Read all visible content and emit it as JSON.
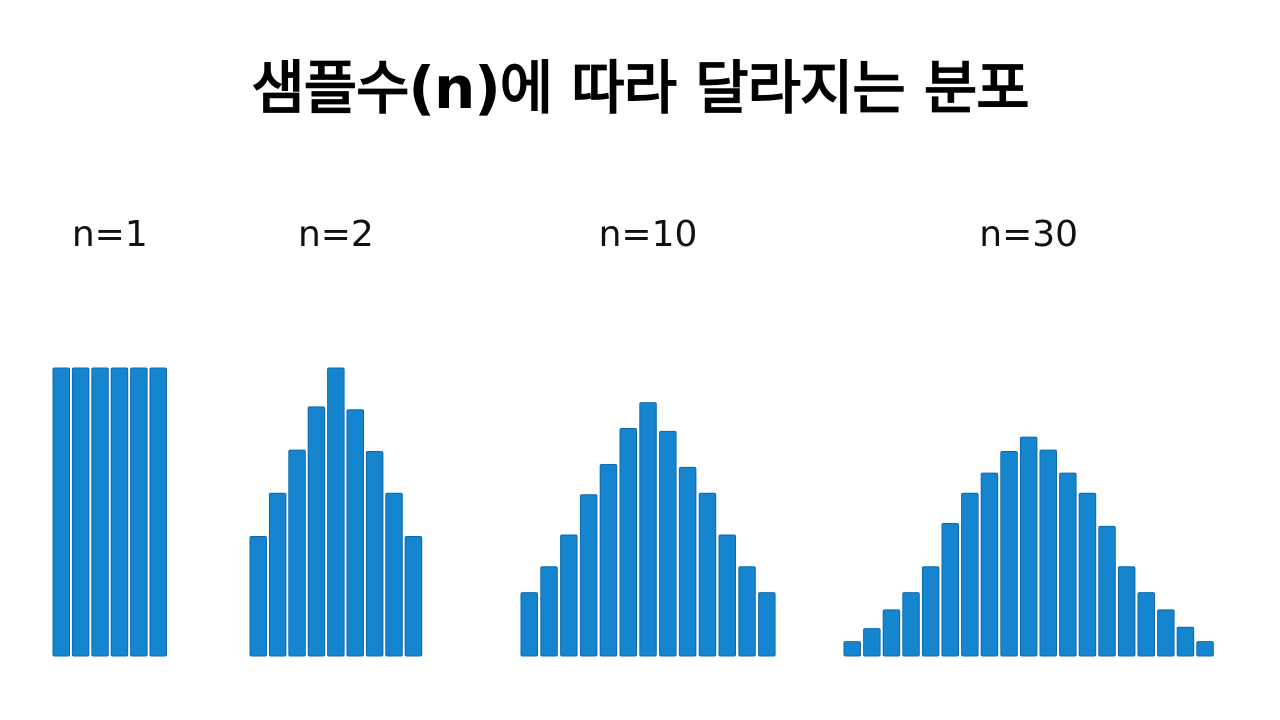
{
  "title": "샘플수(n)에 따라 달라지는 분포",
  "colors": {
    "bar_fill": "#1585cf",
    "bar_stroke": "#0f6aa8",
    "background": "#ffffff",
    "text": "#111111"
  },
  "chart_data": [
    {
      "type": "bar",
      "label": "n=1",
      "values": [
        100,
        100,
        100,
        100,
        100,
        100
      ],
      "ylim": [
        0,
        100
      ]
    },
    {
      "type": "bar",
      "label": "n=2",
      "values": [
        41.5,
        56.5,
        71.5,
        86.5,
        100,
        85.5,
        71,
        56.5,
        41.5
      ],
      "ylim": [
        0,
        100
      ]
    },
    {
      "type": "bar",
      "label": "n=10",
      "values": [
        22,
        31,
        42,
        56,
        66.5,
        79,
        88,
        78,
        65.5,
        56.5,
        42,
        31,
        22
      ],
      "ylim": [
        0,
        100
      ]
    },
    {
      "type": "bar",
      "label": "n=30",
      "values": [
        5,
        9.5,
        16,
        22,
        31,
        46,
        56.5,
        63.5,
        71,
        76,
        71.5,
        63.5,
        56.5,
        45,
        31,
        22,
        16,
        10,
        5
      ],
      "ylim": [
        0,
        100
      ]
    }
  ]
}
